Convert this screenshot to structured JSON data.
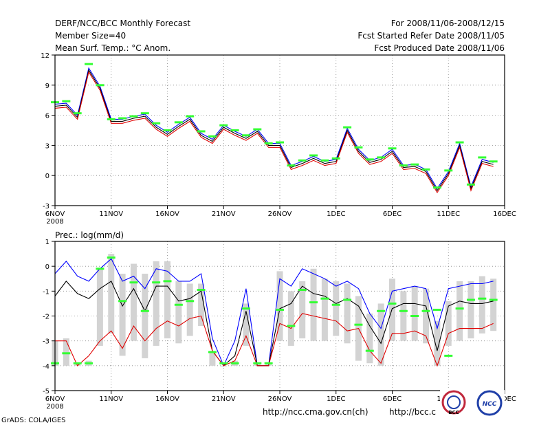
{
  "header": {
    "title": "DERF/NCC/BCC Monthly Forecast",
    "member_size": "Member Size=40",
    "variable": "Mean Surf. Temp.: °C Anom.",
    "period": "For 2008/11/06-2008/12/15",
    "start_date": "Fcst Started Refer Date 2008/11/05",
    "produced_date": "Fcst Produced Date 2008/11/06"
  },
  "footer": {
    "grads": "GrADS: COLA/IGES",
    "url1": "http://ncc.cma.gov.cn(ch)",
    "url2": "http://bcc.c",
    "logo_bcc": "BCC",
    "logo_ncc": "NCC",
    "colors": {
      "bcc_ring": "#c0283c",
      "ncc_ring": "#1f3fa8"
    }
  },
  "chart_data": [
    {
      "type": "line",
      "title": "Mean Surf. Temp.: °C Anom.",
      "ylim": [
        -3,
        12
      ],
      "yticks": [
        -3,
        0,
        3,
        6,
        9,
        12
      ],
      "xlim": [
        0,
        40
      ],
      "xticks": [
        {
          "pos": 0,
          "label": "6NOV",
          "sub": "2008"
        },
        {
          "pos": 5,
          "label": "11NOV"
        },
        {
          "pos": 10,
          "label": "16NOV"
        },
        {
          "pos": 15,
          "label": "21NOV"
        },
        {
          "pos": 20,
          "label": "26NOV"
        },
        {
          "pos": 25,
          "label": "1DEC"
        },
        {
          "pos": 30,
          "label": "6DEC"
        },
        {
          "pos": 35,
          "label": "11DEC"
        },
        {
          "pos": 40,
          "label": "16DEC"
        }
      ],
      "grid": true,
      "x": [
        0,
        1,
        2,
        3,
        4,
        5,
        6,
        7,
        8,
        9,
        10,
        11,
        12,
        13,
        14,
        15,
        16,
        17,
        18,
        19,
        20,
        21,
        22,
        23,
        24,
        25,
        26,
        27,
        28,
        29,
        30,
        31,
        32,
        33,
        34,
        35,
        36,
        37,
        38,
        39
      ],
      "series": [
        {
          "name": "upper",
          "color": "#0000ff",
          "values": [
            7.1,
            7.2,
            6.0,
            10.7,
            8.9,
            5.6,
            5.6,
            5.9,
            6.1,
            5.0,
            4.3,
            5.1,
            5.8,
            4.2,
            3.6,
            5.0,
            4.4,
            3.9,
            4.6,
            3.2,
            3.2,
            1.0,
            1.4,
            1.9,
            1.4,
            1.6,
            4.7,
            2.6,
            1.5,
            1.8,
            2.6,
            1.0,
            1.1,
            0.6,
            -1.3,
            0.4,
            3.2,
            -1.1,
            1.6,
            1.3
          ]
        },
        {
          "name": "mean",
          "color": "#000000",
          "values": [
            6.9,
            7.0,
            5.8,
            10.5,
            8.7,
            5.4,
            5.4,
            5.7,
            5.9,
            4.8,
            4.1,
            4.9,
            5.6,
            4.0,
            3.4,
            4.8,
            4.2,
            3.7,
            4.4,
            3.0,
            3.0,
            0.8,
            1.2,
            1.7,
            1.2,
            1.4,
            4.5,
            2.4,
            1.3,
            1.6,
            2.4,
            0.8,
            0.9,
            0.4,
            -1.5,
            0.2,
            3.0,
            -1.3,
            1.4,
            1.1
          ]
        },
        {
          "name": "lower",
          "color": "#e00000",
          "values": [
            6.7,
            6.8,
            5.6,
            10.3,
            8.5,
            5.2,
            5.2,
            5.5,
            5.7,
            4.6,
            3.9,
            4.7,
            5.4,
            3.8,
            3.2,
            4.6,
            4.0,
            3.5,
            4.2,
            2.8,
            2.8,
            0.6,
            1.0,
            1.5,
            1.0,
            1.2,
            4.3,
            2.2,
            1.1,
            1.4,
            2.2,
            0.6,
            0.7,
            0.2,
            -1.7,
            0.0,
            2.8,
            -1.5,
            1.2,
            0.9
          ]
        },
        {
          "name": "observed-marks",
          "color": "#33ff33",
          "values": [
            7.3,
            7.4,
            6.2,
            11.1,
            9.0,
            5.6,
            5.7,
            5.9,
            6.2,
            5.2,
            4.5,
            5.3,
            5.9,
            4.4,
            3.9,
            5.0,
            4.5,
            4.0,
            4.6,
            3.2,
            3.3,
            1.0,
            1.5,
            2.0,
            1.5,
            1.7,
            4.8,
            2.8,
            1.6,
            1.8,
            2.7,
            1.0,
            1.1,
            0.6,
            -1.2,
            0.5,
            3.3,
            -0.9,
            1.8,
            1.4
          ]
        }
      ]
    },
    {
      "type": "line",
      "title": "Prec.: log(mm/d)",
      "ylim": [
        -5,
        1
      ],
      "yticks": [
        -5,
        -4,
        -3,
        -2,
        -1,
        0,
        1
      ],
      "xlim": [
        0,
        40
      ],
      "xticks": [
        {
          "pos": 0,
          "label": "6NOV",
          "sub": "2008"
        },
        {
          "pos": 5,
          "label": "11NOV"
        },
        {
          "pos": 10,
          "label": "16NOV"
        },
        {
          "pos": 15,
          "label": "21NOV"
        },
        {
          "pos": 20,
          "label": "26NOV"
        },
        {
          "pos": 25,
          "label": "1DEC"
        },
        {
          "pos": 30,
          "label": "6DEC"
        },
        {
          "pos": 35,
          "label": "11DEC"
        },
        {
          "pos": 40,
          "label": "16DEC"
        }
      ],
      "grid": true,
      "x": [
        0,
        1,
        2,
        3,
        4,
        5,
        6,
        7,
        8,
        9,
        10,
        11,
        12,
        13,
        14,
        15,
        16,
        17,
        18,
        19,
        20,
        21,
        22,
        23,
        24,
        25,
        26,
        27,
        28,
        29,
        30,
        31,
        32,
        33,
        34,
        35,
        36,
        37,
        38,
        39
      ],
      "bars": {
        "name": "ensemble-spread",
        "color": "#d3d3d3",
        "top": [
          -3.0,
          -2.9,
          -3.9,
          -3.8,
          -0.1,
          0.5,
          -0.3,
          0.1,
          -0.3,
          0.2,
          0.2,
          -0.6,
          -0.7,
          -0.7,
          -3.4,
          -4.0,
          -3.8,
          -1.5,
          -3.9,
          -3.9,
          -0.2,
          -1.0,
          -0.6,
          -0.1,
          -0.5,
          -0.6,
          -0.7,
          -1.2,
          -1.9,
          -1.5,
          -0.5,
          -1.0,
          -0.8,
          -0.9,
          -2.2,
          -1.4,
          -0.6,
          -0.6,
          -0.4,
          -0.5
        ],
        "bottom": [
          -4.0,
          -4.0,
          -4.0,
          -4.0,
          -3.2,
          -2.7,
          -3.6,
          -3.0,
          -3.7,
          -3.2,
          -2.9,
          -3.1,
          -2.8,
          -2.4,
          -4.0,
          -4.0,
          -4.0,
          -3.2,
          -4.0,
          -4.0,
          -3.0,
          -3.2,
          -2.9,
          -3.0,
          -3.0,
          -2.8,
          -3.1,
          -3.8,
          -3.9,
          -4.0,
          -3.0,
          -3.0,
          -3.0,
          -3.1,
          -4.0,
          -3.2,
          -3.0,
          -2.9,
          -2.7,
          -2.6
        ]
      },
      "series": [
        {
          "name": "upper",
          "color": "#0000ff",
          "values": [
            -0.3,
            0.2,
            -0.4,
            -0.6,
            -0.1,
            0.3,
            -0.6,
            -0.4,
            -0.9,
            -0.1,
            -0.2,
            -0.6,
            -0.6,
            -0.3,
            -2.9,
            -4.0,
            -3.0,
            -0.9,
            -4.0,
            -4.0,
            -0.5,
            -0.8,
            -0.1,
            -0.3,
            -0.5,
            -0.8,
            -0.6,
            -0.9,
            -1.9,
            -2.5,
            -1.0,
            -0.9,
            -0.8,
            -0.9,
            -2.5,
            -0.9,
            -0.8,
            -0.7,
            -0.7,
            -0.6
          ]
        },
        {
          "name": "mean",
          "color": "#000000",
          "values": [
            -1.2,
            -0.6,
            -1.1,
            -1.3,
            -0.9,
            -0.6,
            -1.6,
            -0.9,
            -1.8,
            -0.8,
            -0.8,
            -1.4,
            -1.3,
            -1.0,
            -3.4,
            -4.0,
            -3.6,
            -1.8,
            -4.0,
            -4.0,
            -1.7,
            -1.5,
            -0.8,
            -1.1,
            -1.2,
            -1.5,
            -1.3,
            -1.6,
            -2.4,
            -3.1,
            -1.7,
            -1.5,
            -1.5,
            -1.6,
            -3.4,
            -1.6,
            -1.4,
            -1.5,
            -1.5,
            -1.4
          ]
        },
        {
          "name": "lower",
          "color": "#e00000",
          "values": [
            -3.0,
            -3.0,
            -4.0,
            -3.6,
            -3.0,
            -2.6,
            -3.3,
            -2.4,
            -3.0,
            -2.5,
            -2.2,
            -2.4,
            -2.1,
            -2.0,
            -3.4,
            -4.0,
            -3.8,
            -2.8,
            -4.0,
            -4.0,
            -2.3,
            -2.5,
            -1.9,
            -2.0,
            -2.1,
            -2.2,
            -2.6,
            -2.5,
            -3.4,
            -3.9,
            -2.7,
            -2.7,
            -2.6,
            -2.8,
            -4.0,
            -2.7,
            -2.5,
            -2.5,
            -2.5,
            -2.3
          ]
        },
        {
          "name": "observed-marks",
          "color": "#33ff33",
          "values": [
            -3.9,
            -3.5,
            -3.9,
            -3.9,
            -0.1,
            0.35,
            -1.4,
            -0.65,
            -1.8,
            -0.65,
            -0.6,
            -1.55,
            -1.4,
            -0.95,
            -3.45,
            -3.9,
            -3.9,
            -1.7,
            -3.9,
            -3.9,
            -1.75,
            -2.4,
            -0.95,
            -1.45,
            -1.3,
            -1.55,
            -1.35,
            -2.35,
            -3.4,
            -1.8,
            -1.5,
            -1.8,
            -2.0,
            -1.8,
            -1.75,
            -3.6,
            -1.7,
            -1.35,
            -1.3,
            -1.35
          ]
        }
      ],
      "axis_label": "Prec.: log(mm/d)"
    }
  ]
}
